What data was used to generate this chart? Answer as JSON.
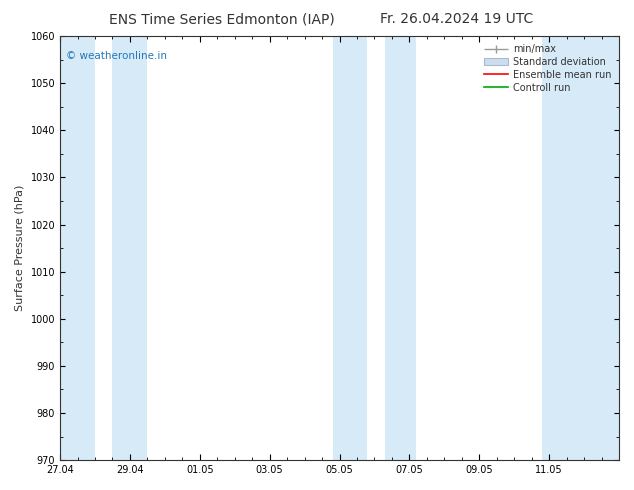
{
  "title_left": "ENS Time Series Edmonton (IAP)",
  "title_right": "Fr. 26.04.2024 19 UTC",
  "ylabel": "Surface Pressure (hPa)",
  "ylim": [
    970,
    1060
  ],
  "yticks": [
    970,
    980,
    990,
    1000,
    1010,
    1020,
    1030,
    1040,
    1050,
    1060
  ],
  "xlim": [
    0,
    16
  ],
  "x_tick_labels": [
    "27.04",
    "29.04",
    "01.05",
    "03.05",
    "05.05",
    "07.05",
    "09.05",
    "11.05"
  ],
  "x_tick_positions": [
    0,
    2,
    4,
    6,
    8,
    10,
    12,
    14
  ],
  "shaded_bands": [
    {
      "x_start": 0.0,
      "x_end": 1.0
    },
    {
      "x_start": 1.5,
      "x_end": 2.5
    },
    {
      "x_start": 7.8,
      "x_end": 8.8
    },
    {
      "x_start": 9.3,
      "x_end": 10.2
    },
    {
      "x_start": 13.8,
      "x_end": 16.0
    }
  ],
  "band_color": "#d6eaf8",
  "watermark_text": "© weatheronline.in",
  "watermark_color": "#2277bb",
  "bg_color": "#ffffff",
  "axis_bg_color": "#ffffff",
  "legend_labels": [
    "min/max",
    "Standard deviation",
    "Ensemble mean run",
    "Controll run"
  ],
  "legend_colors": [
    "#999999",
    "#bbccdd",
    "#ff0000",
    "#00aa00"
  ],
  "title_fontsize": 10,
  "tick_fontsize": 7,
  "label_fontsize": 8,
  "legend_fontsize": 7
}
